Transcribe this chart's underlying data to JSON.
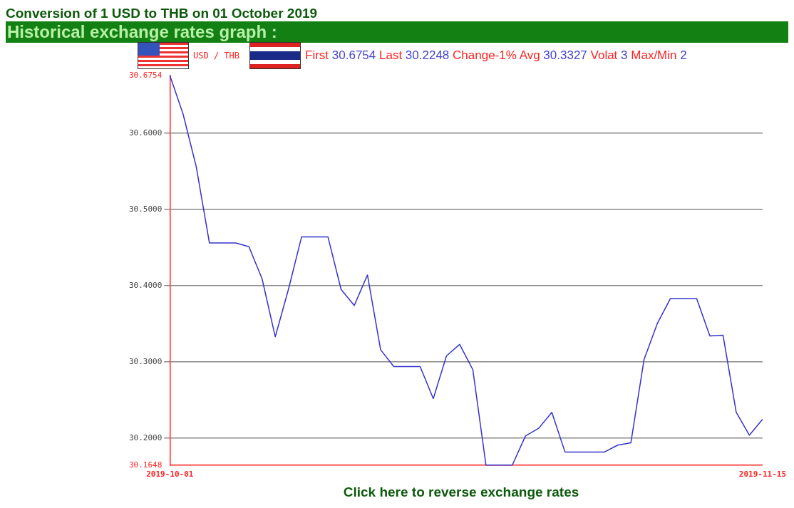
{
  "chart_data": {
    "type": "line",
    "title": "Conversion of 1 USD to THB on 01 October 2019",
    "subtitle": "Historical exchange rates graph :",
    "annotations": [
      "USD / THB",
      "First 30.6754 Last 30.2248 Change-1% Avg 30.3327 Volat 3 Max/Min 2",
      "Click here to reverse exchange rates"
    ],
    "x": [
      "2019-10-01",
      "2019-10-02",
      "2019-10-03",
      "2019-10-04",
      "2019-10-05",
      "2019-10-06",
      "2019-10-07",
      "2019-10-08",
      "2019-10-09",
      "2019-10-10",
      "2019-10-11",
      "2019-10-12",
      "2019-10-13",
      "2019-10-14",
      "2019-10-15",
      "2019-10-16",
      "2019-10-17",
      "2019-10-18",
      "2019-10-19",
      "2019-10-20",
      "2019-10-21",
      "2019-10-22",
      "2019-10-23",
      "2019-10-24",
      "2019-10-25",
      "2019-10-26",
      "2019-10-27",
      "2019-10-28",
      "2019-10-29",
      "2019-10-30",
      "2019-10-31",
      "2019-11-01",
      "2019-11-02",
      "2019-11-03",
      "2019-11-04",
      "2019-11-05",
      "2019-11-06",
      "2019-11-07",
      "2019-11-08",
      "2019-11-09",
      "2019-11-10",
      "2019-11-11",
      "2019-11-12",
      "2019-11-13",
      "2019-11-14",
      "2019-11-15"
    ],
    "series": [
      {
        "color": "#3333cc",
        "values": [
          30.6754,
          30.625,
          30.556,
          30.456,
          30.456,
          30.456,
          30.451,
          30.409,
          30.333,
          30.395,
          30.464,
          30.464,
          30.464,
          30.395,
          30.374,
          30.414,
          30.316,
          30.294,
          30.294,
          30.294,
          30.252,
          30.308,
          30.323,
          30.29,
          30.1648,
          30.1648,
          30.1648,
          30.203,
          30.213,
          30.234,
          30.182,
          30.182,
          30.182,
          30.182,
          30.191,
          30.194,
          30.303,
          30.35,
          30.383,
          30.383,
          30.383,
          30.334,
          30.335,
          30.234,
          30.204,
          30.2248
        ]
      }
    ],
    "xlim": [
      "2019-10-01",
      "2019-11-15"
    ],
    "xticks": [
      {
        "value": "2019-10-01",
        "label": "2019-10-01"
      },
      {
        "value": "2019-11-15",
        "label": "2019-11-15"
      }
    ],
    "ylim": [
      30.1648,
      30.6754
    ],
    "yticks": [
      {
        "value": 30.1648,
        "label": "30.1648"
      },
      {
        "value": 30.2,
        "label": "30.2000"
      },
      {
        "value": 30.3,
        "label": "30.3000"
      },
      {
        "value": 30.4,
        "label": "30.4000"
      },
      {
        "value": 30.5,
        "label": "30.5000"
      },
      {
        "value": 30.6,
        "label": "30.6000"
      },
      {
        "value": 30.6754,
        "label": "30.6754"
      }
    ],
    "grid": "y",
    "legend": false,
    "marker": "none",
    "line_style": "solid"
  }
}
